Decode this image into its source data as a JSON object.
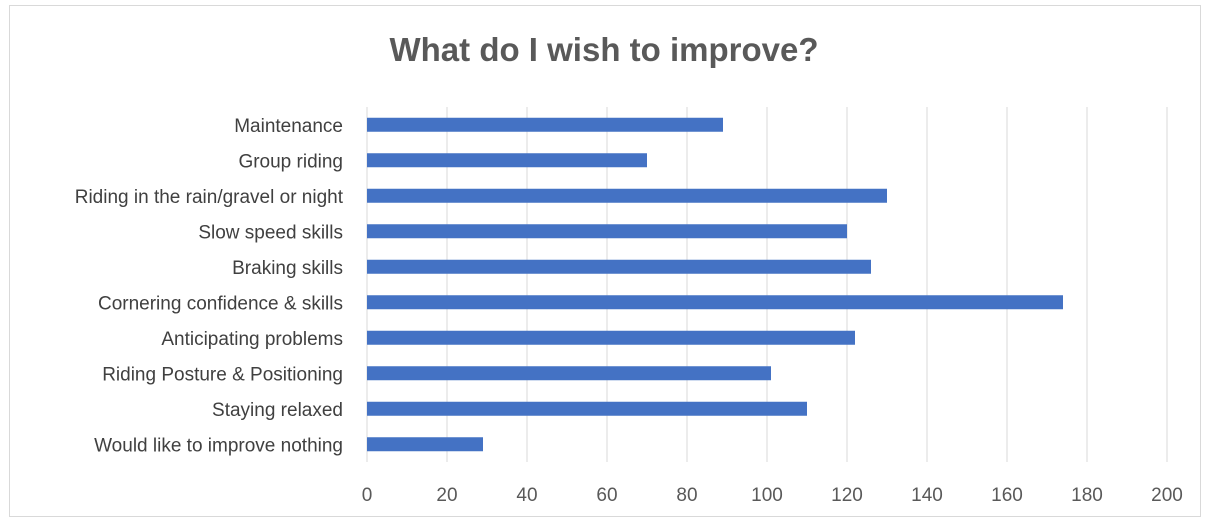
{
  "chart_data": {
    "type": "bar",
    "orientation": "horizontal",
    "title": "What do I wish to improve?",
    "xlabel": "",
    "ylabel": "",
    "xlim": [
      0,
      200
    ],
    "xticks": [
      0,
      20,
      40,
      60,
      80,
      100,
      120,
      140,
      160,
      180,
      200
    ],
    "grid": "vertical",
    "legend": "none",
    "bar_color": "#4472c4",
    "categories": [
      "Maintenance",
      "Group riding",
      "Riding in the rain/gravel or night",
      "Slow speed skills",
      "Braking skills",
      "Cornering confidence & skills",
      "Anticipating problems",
      "Riding Posture & Positioning",
      "Staying relaxed",
      "Would like to improve nothing"
    ],
    "values": [
      89,
      70,
      130,
      120,
      126,
      174,
      122,
      101,
      110,
      29
    ]
  }
}
